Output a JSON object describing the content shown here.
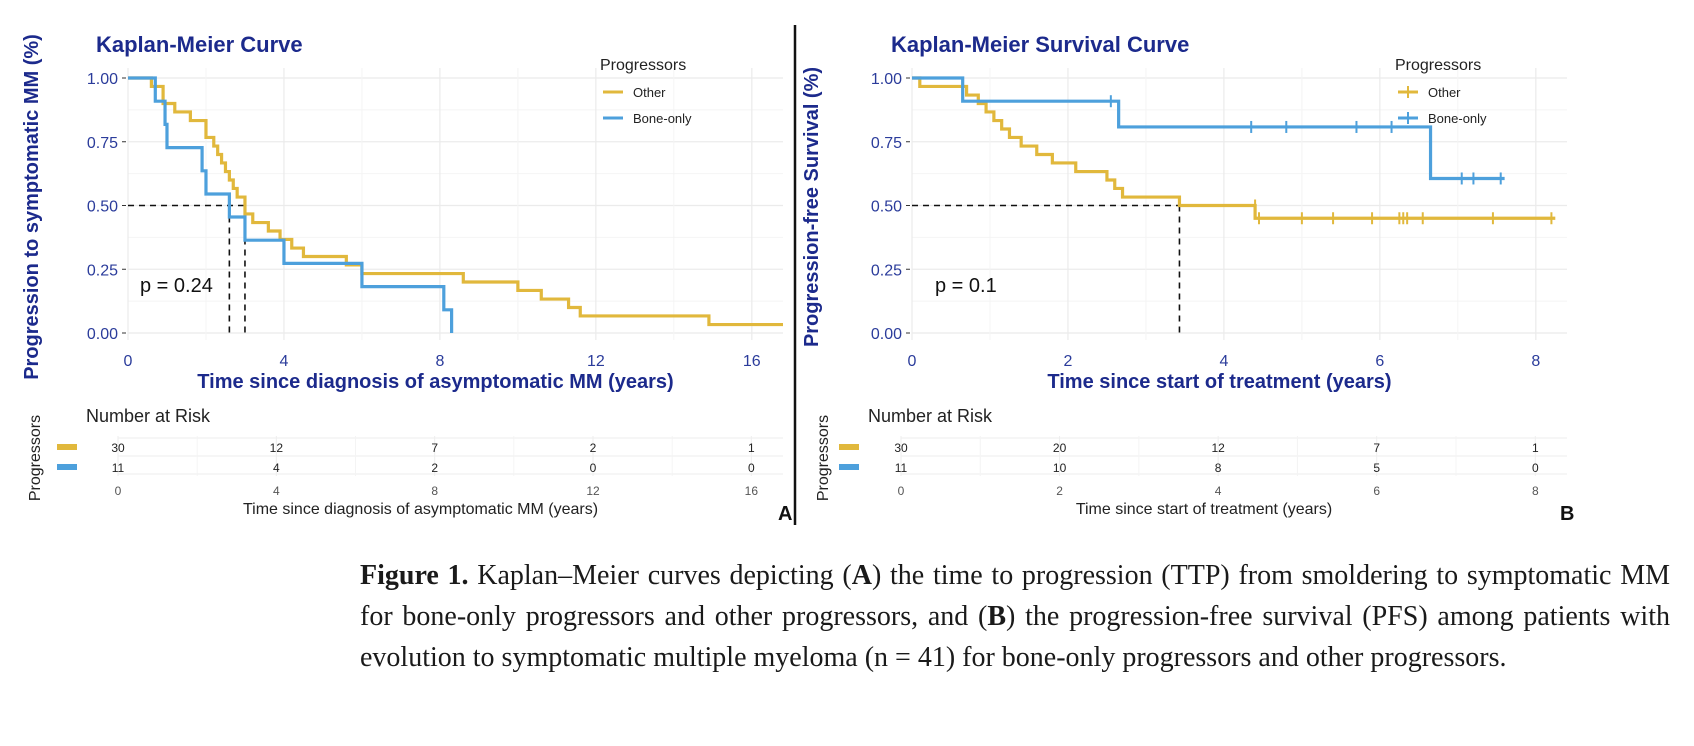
{
  "colors": {
    "other": "#E1B83C",
    "bone": "#4DA0DC",
    "title": "#1C2A8C",
    "grid": "#EBEBEB",
    "tick": "#2B3C9B"
  },
  "chart_data": [
    {
      "panel_label": "A",
      "type": "line",
      "step": true,
      "title": "Kaplan-Meier Curve",
      "xlabel": "Time since diagnosis of asymptomatic MM (years)",
      "ylabel": "Progression to symptomatic MM (%)",
      "xlim": [
        0,
        16.8
      ],
      "ylim": [
        0,
        1
      ],
      "x_ticks": [
        0,
        4,
        8,
        12,
        16
      ],
      "x_tick_labels": [
        "0",
        "4",
        "8",
        "12",
        "16"
      ],
      "y_ticks": [
        0,
        0.25,
        0.5,
        0.75,
        1
      ],
      "y_tick_labels": [
        "0.00",
        "0.25",
        "0.50",
        "0.75",
        "1.00"
      ],
      "grid": true,
      "legend": {
        "title": "Progressors",
        "position": "top-right",
        "entries": [
          "Other",
          "Bone-only"
        ]
      },
      "annotation": "p = 0.24",
      "median_lines": [
        2.6,
        3.0
      ],
      "series": [
        {
          "name": "Other",
          "color": "#E1B83C",
          "x": [
            0,
            0.6,
            0.9,
            1.2,
            1.6,
            2.0,
            2.2,
            2.3,
            2.4,
            2.5,
            2.6,
            2.7,
            2.8,
            3.0,
            3.2,
            3.6,
            3.9,
            4.2,
            4.5,
            5.6,
            6.0,
            8.6,
            10.0,
            10.6,
            11.3,
            11.6,
            14.9,
            16.8
          ],
          "y": [
            1.0,
            0.967,
            0.9,
            0.867,
            0.833,
            0.767,
            0.733,
            0.7,
            0.667,
            0.633,
            0.6,
            0.567,
            0.533,
            0.467,
            0.433,
            0.4,
            0.367,
            0.333,
            0.3,
            0.267,
            0.233,
            0.2,
            0.167,
            0.133,
            0.1,
            0.067,
            0.033,
            0.033
          ]
        },
        {
          "name": "Bone-only",
          "color": "#4DA0DC",
          "x": [
            0,
            0.7,
            0.95,
            1.0,
            1.9,
            2.0,
            2.6,
            3.0,
            4.0,
            6.0,
            8.1,
            8.3
          ],
          "y": [
            1.0,
            0.909,
            0.818,
            0.727,
            0.636,
            0.545,
            0.455,
            0.364,
            0.273,
            0.182,
            0.091,
            0.0
          ]
        }
      ],
      "risk_table": {
        "title": "Number at Risk",
        "ylabel": "Progressors",
        "xlabel": "Time since diagnosis of asymptomatic MM (years)",
        "times": [
          "0",
          "4",
          "8",
          "12",
          "16"
        ],
        "rows": [
          {
            "name": "Other",
            "color": "#E1B83C",
            "values": [
              "30",
              "12",
              "7",
              "2",
              "1"
            ]
          },
          {
            "name": "Bone-only",
            "color": "#4DA0DC",
            "values": [
              "11",
              "4",
              "2",
              "0",
              "0"
            ]
          }
        ]
      }
    },
    {
      "panel_label": "B",
      "type": "line",
      "step": true,
      "title": "Kaplan-Meier Survival Curve",
      "xlabel": "Time since start of treatment (years)",
      "ylabel": "Progression-free Survival (%)",
      "xlim": [
        0,
        8.4
      ],
      "ylim": [
        0,
        1
      ],
      "x_ticks": [
        0,
        2,
        4,
        6,
        8
      ],
      "x_tick_labels": [
        "0",
        "2",
        "4",
        "6",
        "8"
      ],
      "y_ticks": [
        0,
        0.25,
        0.5,
        0.75,
        1
      ],
      "y_tick_labels": [
        "0.00",
        "0.25",
        "0.50",
        "0.75",
        "1.00"
      ],
      "grid": true,
      "legend": {
        "title": "Progressors",
        "position": "top-right",
        "entries": [
          "Other",
          "Bone-only"
        ]
      },
      "annotation": "p = 0.1",
      "median_lines": [
        3.43
      ],
      "series": [
        {
          "name": "Other",
          "color": "#E1B83C",
          "x": [
            0,
            0.1,
            0.7,
            0.85,
            0.95,
            1.05,
            1.15,
            1.25,
            1.4,
            1.6,
            1.8,
            2.1,
            2.5,
            2.6,
            2.7,
            2.8,
            3.43,
            4.4,
            8.25
          ],
          "y": [
            1.0,
            0.967,
            0.933,
            0.9,
            0.867,
            0.833,
            0.8,
            0.767,
            0.733,
            0.7,
            0.667,
            0.633,
            0.6,
            0.567,
            0.533,
            0.533,
            0.5,
            0.45,
            0.45
          ],
          "censor_x": [
            4.4,
            4.45,
            5.0,
            5.4,
            5.9,
            6.25,
            6.3,
            6.35,
            6.55,
            7.45,
            8.2
          ],
          "censor_y": [
            0.5,
            0.45,
            0.45,
            0.45,
            0.45,
            0.45,
            0.45,
            0.45,
            0.45,
            0.45,
            0.45
          ]
        },
        {
          "name": "Bone-only",
          "color": "#4DA0DC",
          "x": [
            0,
            0.65,
            2.65,
            6.65,
            7.6
          ],
          "y": [
            1.0,
            0.909,
            0.808,
            0.606,
            0.606
          ],
          "censor_x": [
            2.55,
            4.35,
            4.8,
            5.7,
            6.15,
            7.05,
            7.2,
            7.55
          ],
          "censor_y": [
            0.909,
            0.808,
            0.808,
            0.808,
            0.808,
            0.606,
            0.606,
            0.606
          ]
        }
      ],
      "risk_table": {
        "title": "Number at Risk",
        "ylabel": "Progressors",
        "xlabel": "Time since start of treatment (years)",
        "times": [
          "0",
          "2",
          "4",
          "6",
          "8"
        ],
        "rows": [
          {
            "name": "Other",
            "color": "#E1B83C",
            "values": [
              "30",
              "20",
              "12",
              "7",
              "1"
            ]
          },
          {
            "name": "Bone-only",
            "color": "#4DA0DC",
            "values": [
              "11",
              "10",
              "8",
              "5",
              "0"
            ]
          }
        ]
      }
    }
  ],
  "caption": {
    "label": "Figure 1.",
    "p1": " Kaplan–Meier curves depicting (",
    "a": "A",
    "p2": ") the time to progression (TTP) from smoldering to symptomatic MM for bone-only progressors and other progressors, and (",
    "b": "B",
    "p3": ") the progression-free survival (PFS) among patients with evolution to symptomatic multiple myeloma (n = 41) for bone-only progressors and other progressors."
  }
}
